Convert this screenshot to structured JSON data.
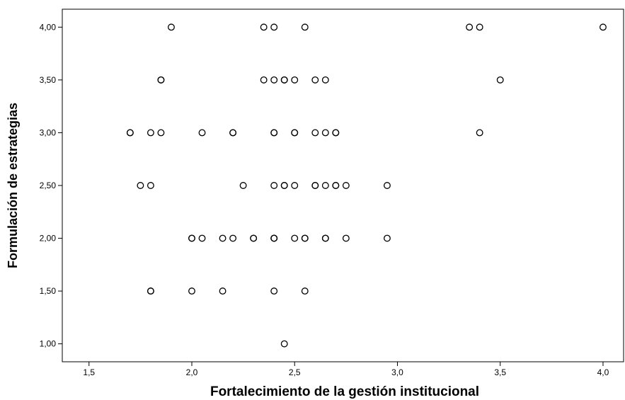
{
  "chart_data": {
    "type": "scatter",
    "title": "",
    "xlabel": "Fortalecimiento de la gestión institucional",
    "ylabel": "Formulación de estrategias",
    "xlim": [
      1.37,
      4.1
    ],
    "ylim": [
      0.83,
      4.17
    ],
    "x_ticks": [
      1.5,
      2.0,
      2.5,
      3.0,
      3.5,
      4.0
    ],
    "x_tick_labels": [
      "1,5",
      "2,0",
      "2,5",
      "3,0",
      "3,5",
      "4,0"
    ],
    "y_ticks": [
      1.0,
      1.5,
      2.0,
      2.5,
      3.0,
      3.5,
      4.0
    ],
    "y_tick_labels": [
      "1,00",
      "1,50",
      "2,00",
      "2,50",
      "3,00",
      "3,50",
      "4,00"
    ],
    "grid": false,
    "series": [
      {
        "points": [
          [
            1.9,
            4.0
          ],
          [
            2.35,
            4.0
          ],
          [
            2.4,
            4.0
          ],
          [
            2.55,
            4.0
          ],
          [
            3.35,
            4.0
          ],
          [
            3.4,
            4.0
          ],
          [
            4.0,
            4.0
          ],
          [
            1.85,
            3.5
          ],
          [
            1.85,
            3.5
          ],
          [
            2.35,
            3.5
          ],
          [
            2.4,
            3.5
          ],
          [
            2.45,
            3.5
          ],
          [
            2.45,
            3.5
          ],
          [
            2.5,
            3.5
          ],
          [
            2.6,
            3.5
          ],
          [
            2.65,
            3.5
          ],
          [
            3.5,
            3.5
          ],
          [
            1.7,
            3.0
          ],
          [
            1.7,
            3.0
          ],
          [
            1.8,
            3.0
          ],
          [
            1.85,
            3.0
          ],
          [
            2.05,
            3.0
          ],
          [
            2.2,
            3.0
          ],
          [
            2.2,
            3.0
          ],
          [
            2.4,
            3.0
          ],
          [
            2.4,
            3.0
          ],
          [
            2.5,
            3.0
          ],
          [
            2.5,
            3.0
          ],
          [
            2.6,
            3.0
          ],
          [
            2.65,
            3.0
          ],
          [
            2.7,
            3.0
          ],
          [
            2.7,
            3.0
          ],
          [
            3.4,
            3.0
          ],
          [
            1.75,
            2.5
          ],
          [
            1.8,
            2.5
          ],
          [
            2.25,
            2.5
          ],
          [
            2.4,
            2.5
          ],
          [
            2.45,
            2.5
          ],
          [
            2.45,
            2.5
          ],
          [
            2.5,
            2.5
          ],
          [
            2.6,
            2.5
          ],
          [
            2.6,
            2.5
          ],
          [
            2.65,
            2.5
          ],
          [
            2.7,
            2.5
          ],
          [
            2.7,
            2.5
          ],
          [
            2.75,
            2.5
          ],
          [
            2.95,
            2.5
          ],
          [
            2.0,
            2.0
          ],
          [
            2.0,
            2.0
          ],
          [
            2.05,
            2.0
          ],
          [
            2.15,
            2.0
          ],
          [
            2.2,
            2.0
          ],
          [
            2.3,
            2.0
          ],
          [
            2.3,
            2.0
          ],
          [
            2.4,
            2.0
          ],
          [
            2.4,
            2.0
          ],
          [
            2.4,
            2.0
          ],
          [
            2.5,
            2.0
          ],
          [
            2.55,
            2.0
          ],
          [
            2.55,
            2.0
          ],
          [
            2.65,
            2.0
          ],
          [
            2.65,
            2.0
          ],
          [
            2.75,
            2.0
          ],
          [
            2.95,
            2.0
          ],
          [
            1.8,
            1.5
          ],
          [
            1.8,
            1.5
          ],
          [
            2.0,
            1.5
          ],
          [
            2.15,
            1.5
          ],
          [
            2.4,
            1.5
          ],
          [
            2.55,
            1.5
          ],
          [
            2.45,
            1.0
          ]
        ]
      }
    ]
  }
}
